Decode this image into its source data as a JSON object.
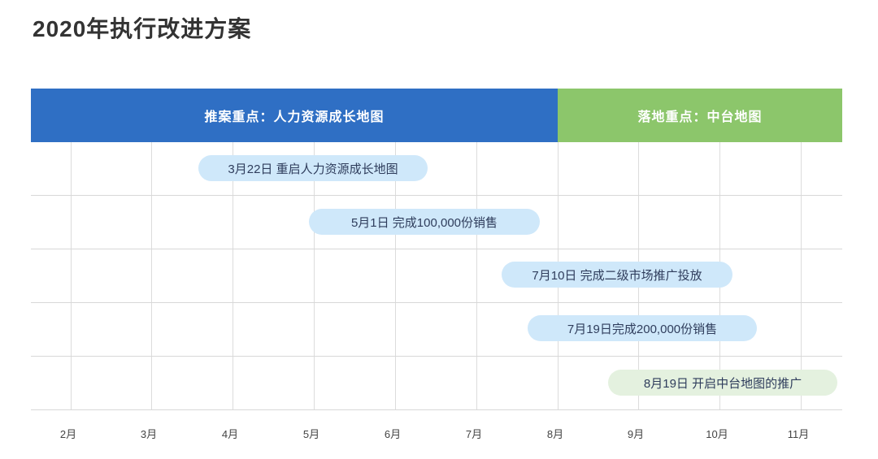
{
  "title": "2020年执行改进方案",
  "phases": [
    {
      "label": "推案重点：人力资源成长地图",
      "color": "#2f6fc4"
    },
    {
      "label": "落地重点：中台地图",
      "color": "#8cc66b"
    }
  ],
  "milestones": [
    {
      "label": "3月22日  重启人力资源成长地图",
      "phase": "blue"
    },
    {
      "label": "5月1日  完成100,000份销售",
      "phase": "blue"
    },
    {
      "label": "7月10日  完成二级市场推广投放",
      "phase": "blue"
    },
    {
      "label": "7月19日完成200,000份销售",
      "phase": "blue"
    },
    {
      "label": "8月19日  开启中台地图的推广",
      "phase": "green"
    }
  ],
  "months": [
    "2月",
    "3月",
    "4月",
    "5月",
    "6月",
    "7月",
    "8月",
    "9月",
    "10月",
    "11月"
  ]
}
